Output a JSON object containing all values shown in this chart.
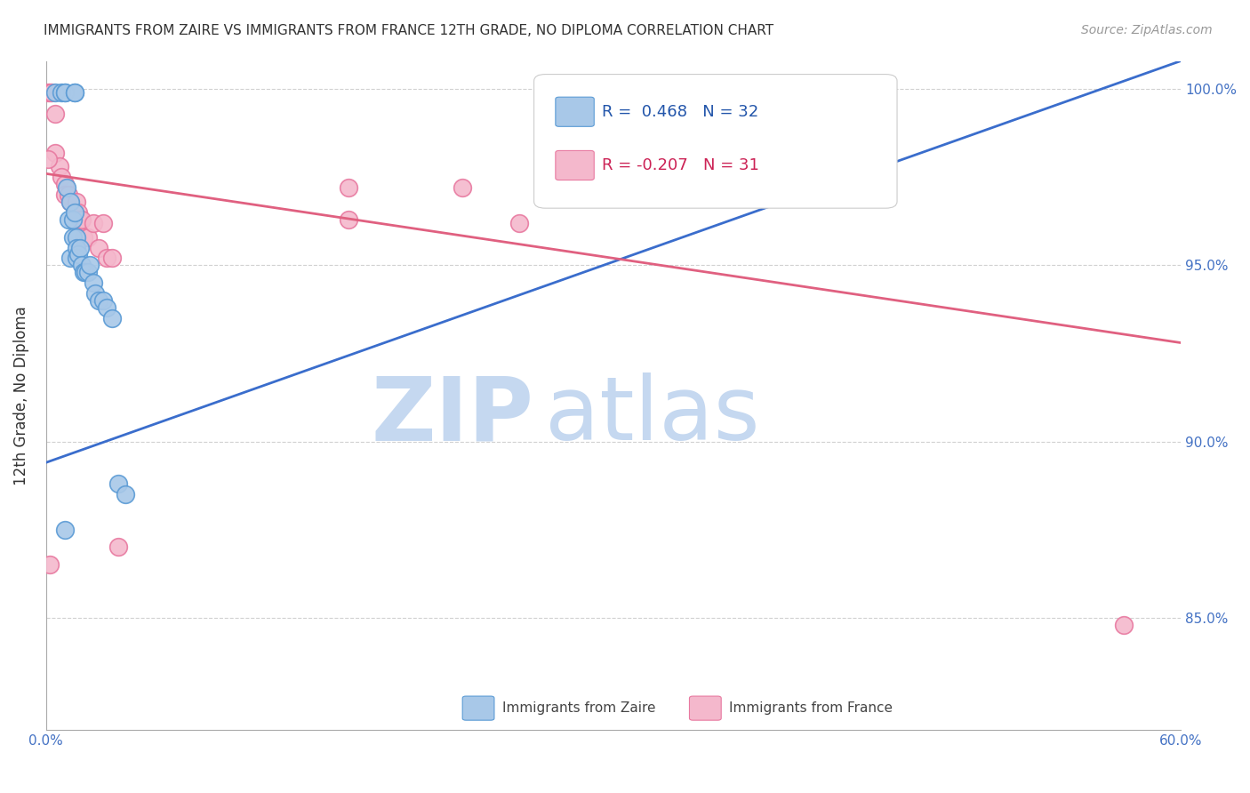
{
  "title": "IMMIGRANTS FROM ZAIRE VS IMMIGRANTS FROM FRANCE 12TH GRADE, NO DIPLOMA CORRELATION CHART",
  "source_text": "Source: ZipAtlas.com",
  "ylabel": "12th Grade, No Diploma",
  "x_min": 0.0,
  "x_max": 0.6,
  "y_min": 0.818,
  "y_max": 1.008,
  "x_ticks": [
    0.0,
    0.1,
    0.2,
    0.3,
    0.4,
    0.5,
    0.6
  ],
  "x_tick_labels": [
    "0.0%",
    "",
    "",
    "",
    "",
    "",
    "60.0%"
  ],
  "y_ticks": [
    0.85,
    0.9,
    0.95,
    1.0
  ],
  "y_tick_labels": [
    "85.0%",
    "90.0%",
    "95.0%",
    "100.0%"
  ],
  "blue_color": "#a8c8e8",
  "blue_edge": "#5b9bd5",
  "pink_color": "#f4b8cc",
  "pink_edge": "#e879a0",
  "line_blue": "#3a6dcc",
  "line_pink": "#e06080",
  "legend_r_blue": "R =  0.468",
  "legend_n_blue": "N = 32",
  "legend_r_pink": "R = -0.207",
  "legend_n_pink": "N = 31",
  "legend_label_blue": "Immigrants from Zaire",
  "legend_label_pink": "Immigrants from France",
  "watermark_zip": "ZIP",
  "watermark_atlas": "atlas",
  "watermark_color_zip": "#c5d8f0",
  "watermark_color_atlas": "#c5d8f0",
  "title_color": "#333333",
  "axis_color": "#4472c4",
  "blue_line_x0": 0.0,
  "blue_line_y0": 0.894,
  "blue_line_x1": 0.6,
  "blue_line_y1": 1.008,
  "pink_line_x0": 0.0,
  "pink_line_y0": 0.976,
  "pink_line_x1": 0.6,
  "pink_line_y1": 0.928,
  "blue_scatter_x": [
    0.005,
    0.008,
    0.01,
    0.01,
    0.011,
    0.012,
    0.013,
    0.013,
    0.014,
    0.014,
    0.015,
    0.015,
    0.016,
    0.016,
    0.016,
    0.017,
    0.018,
    0.019,
    0.02,
    0.021,
    0.022,
    0.023,
    0.025,
    0.026,
    0.028,
    0.03,
    0.032,
    0.035,
    0.038,
    0.042,
    0.015,
    0.01
  ],
  "blue_scatter_y": [
    0.999,
    0.999,
    0.999,
    0.999,
    0.972,
    0.963,
    0.968,
    0.952,
    0.963,
    0.958,
    0.999,
    0.999,
    0.958,
    0.955,
    0.952,
    0.953,
    0.955,
    0.95,
    0.948,
    0.948,
    0.948,
    0.95,
    0.945,
    0.942,
    0.94,
    0.94,
    0.938,
    0.935,
    0.888,
    0.885,
    0.965,
    0.875
  ],
  "pink_scatter_x": [
    0.001,
    0.002,
    0.003,
    0.005,
    0.005,
    0.007,
    0.008,
    0.01,
    0.01,
    0.012,
    0.013,
    0.015,
    0.016,
    0.017,
    0.018,
    0.019,
    0.02,
    0.022,
    0.025,
    0.028,
    0.03,
    0.032,
    0.035,
    0.038,
    0.16,
    0.16,
    0.22,
    0.25,
    0.001,
    0.002,
    0.57
  ],
  "pink_scatter_y": [
    0.999,
    0.999,
    0.999,
    0.993,
    0.982,
    0.978,
    0.975,
    0.973,
    0.97,
    0.97,
    0.968,
    0.965,
    0.968,
    0.965,
    0.963,
    0.963,
    0.958,
    0.958,
    0.962,
    0.955,
    0.962,
    0.952,
    0.952,
    0.87,
    0.963,
    0.972,
    0.972,
    0.962,
    0.98,
    0.865,
    0.848
  ]
}
